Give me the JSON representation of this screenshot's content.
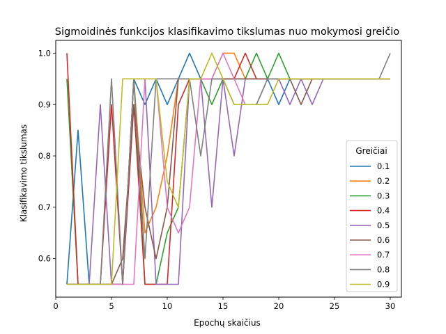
{
  "chart_data": {
    "type": "line",
    "title": "Sigmoidinės funkcijos klasifikavimo tikslumas nuo mokymosi greičio",
    "xlabel": "Epochų skaičius",
    "ylabel": "Klasifikavimo tikslumas",
    "xlim": [
      0,
      31
    ],
    "ylim": [
      0.525,
      1.025
    ],
    "x_ticks": [
      0,
      5,
      10,
      15,
      20,
      25,
      30
    ],
    "y_ticks": [
      0.6,
      0.7,
      0.8,
      0.9,
      1.0
    ],
    "x_tick_labels": [
      "0",
      "5",
      "10",
      "15",
      "20",
      "25",
      "30"
    ],
    "y_tick_labels": [
      "0.6",
      "0.7",
      "0.8",
      "0.9",
      "1.0"
    ],
    "grid": false,
    "legend": {
      "title": "Greičiai",
      "placement": "lower-right"
    },
    "x": [
      1,
      2,
      3,
      4,
      5,
      6,
      7,
      8,
      9,
      10,
      11,
      12,
      13,
      14,
      15,
      16,
      17,
      18,
      19,
      20,
      21,
      22,
      23,
      24,
      25,
      26,
      27,
      28,
      29,
      30
    ],
    "series": [
      {
        "name": "0.1",
        "color": "#1f77b4",
        "values": [
          0.55,
          0.85,
          0.55,
          0.55,
          0.55,
          0.55,
          0.95,
          0.9,
          0.95,
          0.9,
          0.95,
          1.0,
          0.95,
          0.95,
          0.95,
          0.95,
          0.95,
          0.95,
          0.95,
          0.9,
          0.95,
          0.95,
          0.95,
          0.95,
          0.95,
          0.95,
          0.95,
          0.95,
          0.95,
          0.95
        ]
      },
      {
        "name": "0.2",
        "color": "#ff7f0e",
        "values": [
          0.55,
          0.55,
          0.55,
          0.55,
          0.55,
          0.55,
          0.95,
          0.65,
          0.7,
          0.8,
          0.95,
          0.95,
          0.95,
          0.95,
          1.0,
          1.0,
          0.95,
          0.95,
          0.95,
          0.95,
          0.95,
          0.95,
          0.95,
          0.95,
          0.95,
          0.95,
          0.95,
          0.95,
          0.95,
          0.95
        ]
      },
      {
        "name": "0.3",
        "color": "#2ca02c",
        "values": [
          0.95,
          0.55,
          0.55,
          0.55,
          0.55,
          0.55,
          0.95,
          0.55,
          0.55,
          0.65,
          0.7,
          0.95,
          0.95,
          0.9,
          0.95,
          0.95,
          0.95,
          1.0,
          0.95,
          1.0,
          0.95,
          0.95,
          0.95,
          0.95,
          0.95,
          0.95,
          0.95,
          0.95,
          0.95,
          0.95
        ]
      },
      {
        "name": "0.4",
        "color": "#d62728",
        "values": [
          1.0,
          0.55,
          0.55,
          0.55,
          0.9,
          0.55,
          0.9,
          0.55,
          0.55,
          0.55,
          0.9,
          0.95,
          0.95,
          0.95,
          0.95,
          0.95,
          1.0,
          0.95,
          0.95,
          0.95,
          0.95,
          0.95,
          0.95,
          0.95,
          0.95,
          0.95,
          0.95,
          0.95,
          0.95,
          0.95
        ]
      },
      {
        "name": "0.5",
        "color": "#9467bd",
        "values": [
          0.55,
          0.55,
          0.55,
          0.9,
          0.55,
          0.55,
          0.95,
          0.95,
          0.55,
          0.55,
          0.55,
          0.95,
          0.95,
          0.7,
          0.95,
          0.8,
          0.95,
          0.95,
          0.95,
          0.95,
          0.9,
          0.95,
          0.9,
          0.95,
          0.95,
          0.95,
          0.95,
          0.95,
          0.95,
          0.95
        ]
      },
      {
        "name": "0.6",
        "color": "#8c564b",
        "values": [
          0.55,
          0.55,
          0.55,
          0.55,
          0.55,
          0.6,
          0.9,
          0.7,
          0.6,
          0.7,
          0.95,
          0.95,
          0.95,
          0.95,
          0.95,
          0.95,
          0.95,
          0.95,
          0.95,
          0.95,
          0.95,
          0.9,
          0.95,
          0.95,
          0.95,
          0.95,
          0.95,
          0.95,
          0.95,
          0.95
        ]
      },
      {
        "name": "0.7",
        "color": "#e377c2",
        "values": [
          0.55,
          0.55,
          0.55,
          0.55,
          0.55,
          0.55,
          0.55,
          0.95,
          0.95,
          0.7,
          0.65,
          0.7,
          0.95,
          0.95,
          1.0,
          0.95,
          0.9,
          0.9,
          0.95,
          0.95,
          0.95,
          0.95,
          0.95,
          0.95,
          0.95,
          0.95,
          0.95,
          0.95,
          0.95,
          0.95
        ]
      },
      {
        "name": "0.8",
        "color": "#7f7f7f",
        "values": [
          0.55,
          0.55,
          0.55,
          0.55,
          0.95,
          0.55,
          0.95,
          0.6,
          0.95,
          0.95,
          0.95,
          0.95,
          0.8,
          0.95,
          0.95,
          0.9,
          0.9,
          0.9,
          0.95,
          0.95,
          0.95,
          0.95,
          0.95,
          0.95,
          0.95,
          0.95,
          0.95,
          0.95,
          0.95,
          1.0
        ]
      },
      {
        "name": "0.9",
        "color": "#bcbd22",
        "values": [
          0.55,
          0.55,
          0.55,
          0.55,
          0.55,
          0.95,
          0.95,
          0.95,
          0.95,
          0.75,
          0.7,
          0.95,
          0.95,
          1.0,
          0.95,
          0.9,
          0.9,
          0.9,
          0.9,
          0.95,
          0.95,
          0.95,
          0.95,
          0.95,
          0.95,
          0.95,
          0.95,
          0.95,
          0.95,
          0.95
        ]
      }
    ]
  }
}
